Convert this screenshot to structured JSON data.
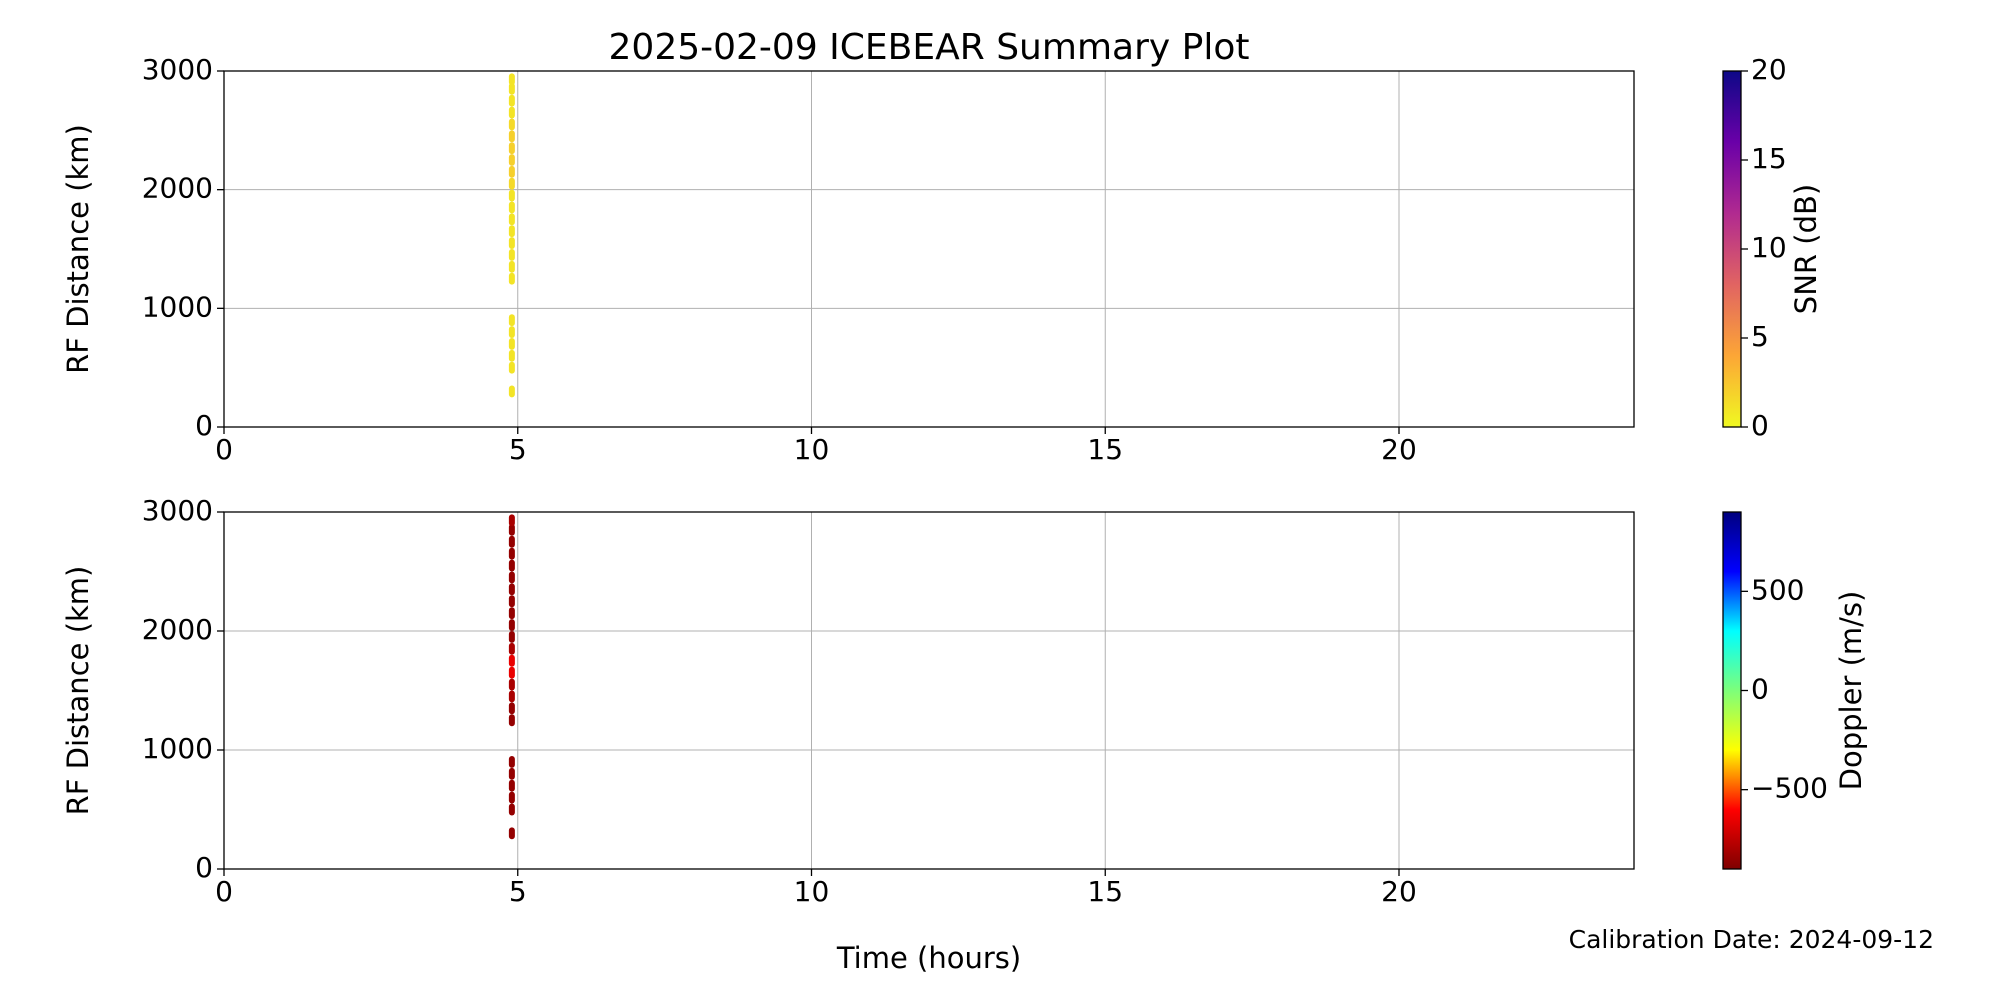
{
  "chart_data": [
    {
      "type": "scatter",
      "title": "2025-02-09 ICEBEAR Summary Plot",
      "ylabel": "RF Distance (km)",
      "xlim": [
        0,
        24
      ],
      "xticks": [
        0,
        5,
        10,
        15,
        20
      ],
      "ylim": [
        0,
        3000
      ],
      "yticks": [
        0,
        1000,
        2000,
        3000
      ],
      "grid": true,
      "x": [
        4.9,
        4.9,
        4.9,
        4.9,
        4.9,
        4.9,
        4.9,
        4.9,
        4.9,
        4.9,
        4.9,
        4.9,
        4.9,
        4.9,
        4.9,
        4.9,
        4.9,
        4.9,
        4.9,
        4.9,
        4.9,
        4.9,
        4.9,
        4.9
      ],
      "y": [
        1250,
        1350,
        1450,
        1550,
        1650,
        1750,
        1850,
        1950,
        2050,
        2150,
        2250,
        2350,
        2450,
        2550,
        2650,
        2750,
        2850,
        2930,
        500,
        600,
        700,
        800,
        900,
        300
      ],
      "c": [
        1,
        1,
        1,
        1,
        1,
        1,
        1,
        1,
        1.5,
        2,
        2,
        2,
        2,
        1.5,
        1,
        1,
        1,
        1,
        1,
        1,
        1,
        1,
        1,
        1
      ],
      "colorbar": {
        "label": "SNR (dB)",
        "clim": [
          0,
          20
        ],
        "ticks": [
          0,
          5,
          10,
          15,
          20
        ],
        "colormap": [
          "#f0f921",
          "#fca636",
          "#e16462",
          "#b12a90",
          "#6a00a8",
          "#0d0887"
        ]
      }
    },
    {
      "type": "scatter",
      "ylabel": "RF Distance (km)",
      "xlabel": "Time (hours)",
      "annotation": "Calibration Date: 2024-09-12",
      "xlim": [
        0,
        24
      ],
      "xticks": [
        0,
        5,
        10,
        15,
        20
      ],
      "ylim": [
        0,
        3000
      ],
      "yticks": [
        0,
        1000,
        2000,
        3000
      ],
      "grid": true,
      "x": [
        4.9,
        4.9,
        4.9,
        4.9,
        4.9,
        4.9,
        4.9,
        4.9,
        4.9,
        4.9,
        4.9,
        4.9,
        4.9,
        4.9,
        4.9,
        4.9,
        4.9,
        4.9,
        4.9,
        4.9,
        4.9,
        4.9,
        4.9,
        4.9
      ],
      "y": [
        1250,
        1350,
        1450,
        1550,
        1650,
        1750,
        1850,
        1950,
        2050,
        2150,
        2250,
        2350,
        2450,
        2550,
        2650,
        2750,
        2850,
        2930,
        500,
        600,
        700,
        800,
        900,
        300
      ],
      "c": [
        -850,
        -850,
        -800,
        -800,
        -650,
        -650,
        -800,
        -850,
        -850,
        -850,
        -850,
        -850,
        -850,
        -850,
        -850,
        -850,
        -850,
        -800,
        -850,
        -850,
        -850,
        -850,
        -850,
        -850
      ],
      "colorbar": {
        "label": "Doppler (m/s)",
        "clim": [
          -900,
          900
        ],
        "ticks": [
          {
            "value": -500,
            "label": "−500"
          },
          0,
          500
        ],
        "colormap": [
          "#7f0000",
          "#ff0000",
          "#ffff00",
          "#7dff7a",
          "#00ffff",
          "#0000ff",
          "#00007f"
        ]
      }
    }
  ]
}
